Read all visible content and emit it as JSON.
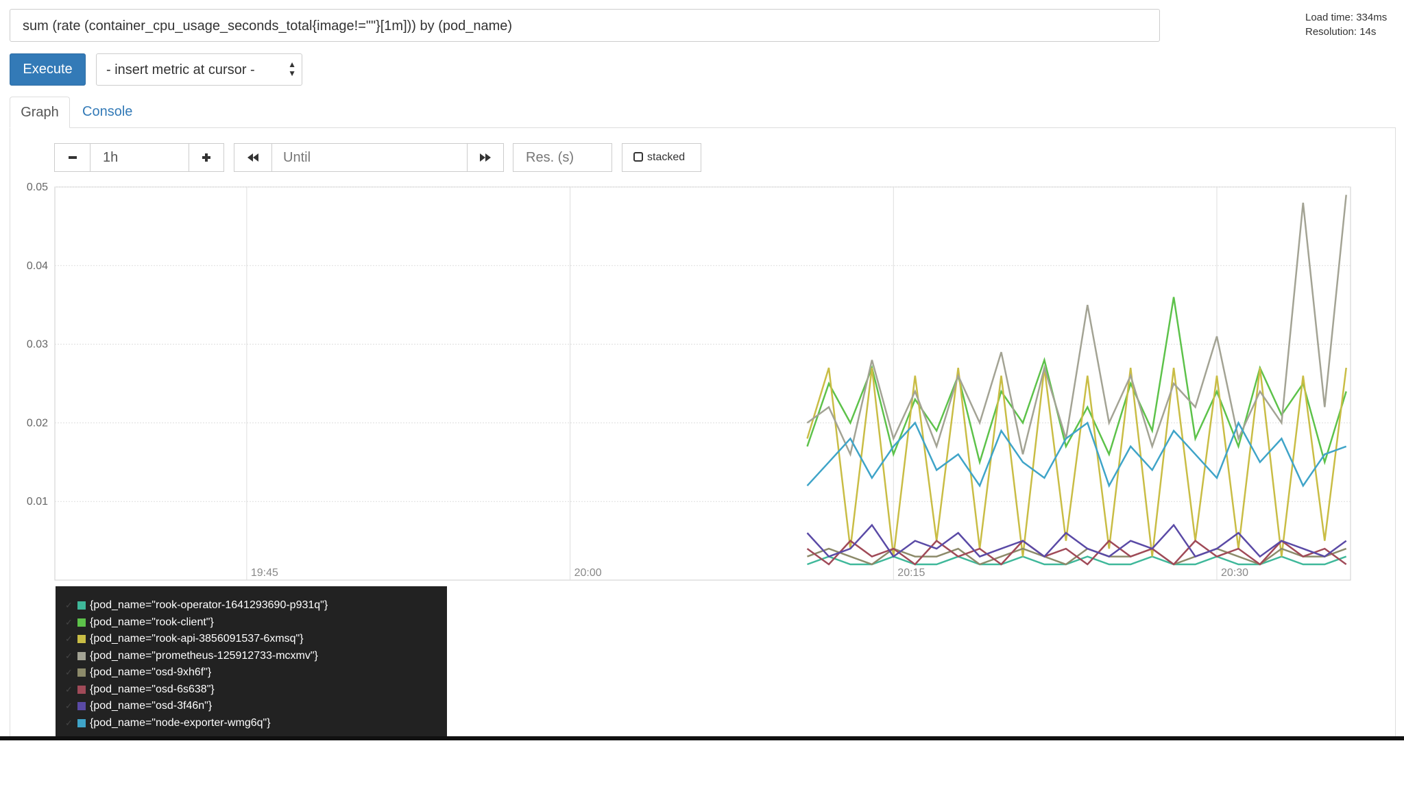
{
  "query": "sum (rate (container_cpu_usage_seconds_total{image!=\"\"}[1m])) by (pod_name)",
  "load_time": "Load time: 334ms",
  "resolution": "Resolution: 14s",
  "execute": "Execute",
  "metric_select": "- insert metric at cursor -",
  "tabs": [
    "Graph",
    "Console"
  ],
  "controls": {
    "range": "1h",
    "until": "Until",
    "res": "Res. (s)",
    "stacked": "stacked"
  },
  "chart_data": {
    "type": "line",
    "x": [
      1211,
      1212,
      1213,
      1214,
      1215,
      1216,
      1217,
      1218,
      1219,
      1220,
      1221,
      1222,
      1223,
      1224,
      1225,
      1226,
      1227,
      1228,
      1229,
      1230,
      1231,
      1232,
      1233,
      1234,
      1235,
      1236
    ],
    "xlim": [
      1176.1,
      1236.2
    ],
    "xticks": [
      {
        "value": 1185,
        "label": "19:45"
      },
      {
        "value": 1200,
        "label": "20:00"
      },
      {
        "value": 1215,
        "label": "20:15"
      },
      {
        "value": 1230,
        "label": "20:30"
      }
    ],
    "ylim": [
      0,
      0.05
    ],
    "yticks": [
      0.01,
      0.02,
      0.03,
      0.04,
      0.05
    ],
    "grid": true,
    "series": [
      {
        "name": "{pod_name=\"rook-operator-1641293690-p931q\"}",
        "color": "#3fb89a",
        "values": [
          0.002,
          0.003,
          0.002,
          0.002,
          0.003,
          0.002,
          0.002,
          0.003,
          0.002,
          0.002,
          0.003,
          0.002,
          0.002,
          0.003,
          0.002,
          0.002,
          0.003,
          0.002,
          0.002,
          0.003,
          0.002,
          0.002,
          0.003,
          0.002,
          0.002,
          0.003
        ]
      },
      {
        "name": "{pod_name=\"rook-client\"}",
        "color": "#5dc24a",
        "values": [
          0.017,
          0.025,
          0.02,
          0.027,
          0.016,
          0.023,
          0.019,
          0.026,
          0.015,
          0.024,
          0.02,
          0.028,
          0.017,
          0.022,
          0.016,
          0.025,
          0.019,
          0.036,
          0.018,
          0.024,
          0.017,
          0.027,
          0.021,
          0.025,
          0.015,
          0.024
        ]
      },
      {
        "name": "{pod_name=\"rook-api-3856091537-6xmsq\"}",
        "color": "#c9bd45",
        "values": [
          0.018,
          0.027,
          0.004,
          0.027,
          0.003,
          0.026,
          0.005,
          0.027,
          0.004,
          0.026,
          0.003,
          0.027,
          0.005,
          0.026,
          0.004,
          0.027,
          0.003,
          0.027,
          0.005,
          0.026,
          0.004,
          0.027,
          0.003,
          0.026,
          0.005,
          0.027
        ]
      },
      {
        "name": "{pod_name=\"prometheus-125912733-mcxmv\"}",
        "color": "#a3a394",
        "values": [
          0.02,
          0.022,
          0.016,
          0.028,
          0.018,
          0.024,
          0.017,
          0.026,
          0.02,
          0.029,
          0.016,
          0.027,
          0.018,
          0.035,
          0.02,
          0.026,
          0.017,
          0.025,
          0.022,
          0.031,
          0.018,
          0.024,
          0.02,
          0.048,
          0.022,
          0.049
        ]
      },
      {
        "name": "{pod_name=\"osd-9xh6f\"}",
        "color": "#8c8a6a",
        "values": [
          0.003,
          0.004,
          0.003,
          0.002,
          0.004,
          0.003,
          0.003,
          0.004,
          0.002,
          0.003,
          0.004,
          0.003,
          0.002,
          0.004,
          0.003,
          0.003,
          0.004,
          0.002,
          0.003,
          0.004,
          0.003,
          0.002,
          0.004,
          0.003,
          0.003,
          0.004
        ]
      },
      {
        "name": "{pod_name=\"osd-6s638\"}",
        "color": "#a04a58",
        "values": [
          0.004,
          0.002,
          0.005,
          0.003,
          0.004,
          0.002,
          0.005,
          0.003,
          0.004,
          0.002,
          0.005,
          0.003,
          0.004,
          0.002,
          0.005,
          0.003,
          0.004,
          0.002,
          0.005,
          0.003,
          0.004,
          0.002,
          0.005,
          0.003,
          0.004,
          0.002
        ]
      },
      {
        "name": "{pod_name=\"osd-3f46n\"}",
        "color": "#5a4aa6",
        "values": [
          0.006,
          0.003,
          0.004,
          0.007,
          0.003,
          0.005,
          0.004,
          0.006,
          0.003,
          0.004,
          0.005,
          0.003,
          0.006,
          0.004,
          0.003,
          0.005,
          0.004,
          0.007,
          0.003,
          0.004,
          0.006,
          0.003,
          0.005,
          0.004,
          0.003,
          0.005
        ]
      },
      {
        "name": "{pod_name=\"node-exporter-wmg6q\"}",
        "color": "#3fa4c8",
        "values": [
          0.012,
          0.015,
          0.018,
          0.013,
          0.017,
          0.02,
          0.014,
          0.016,
          0.012,
          0.019,
          0.015,
          0.013,
          0.018,
          0.02,
          0.012,
          0.017,
          0.014,
          0.019,
          0.016,
          0.013,
          0.02,
          0.015,
          0.018,
          0.012,
          0.016,
          0.017
        ]
      }
    ]
  }
}
